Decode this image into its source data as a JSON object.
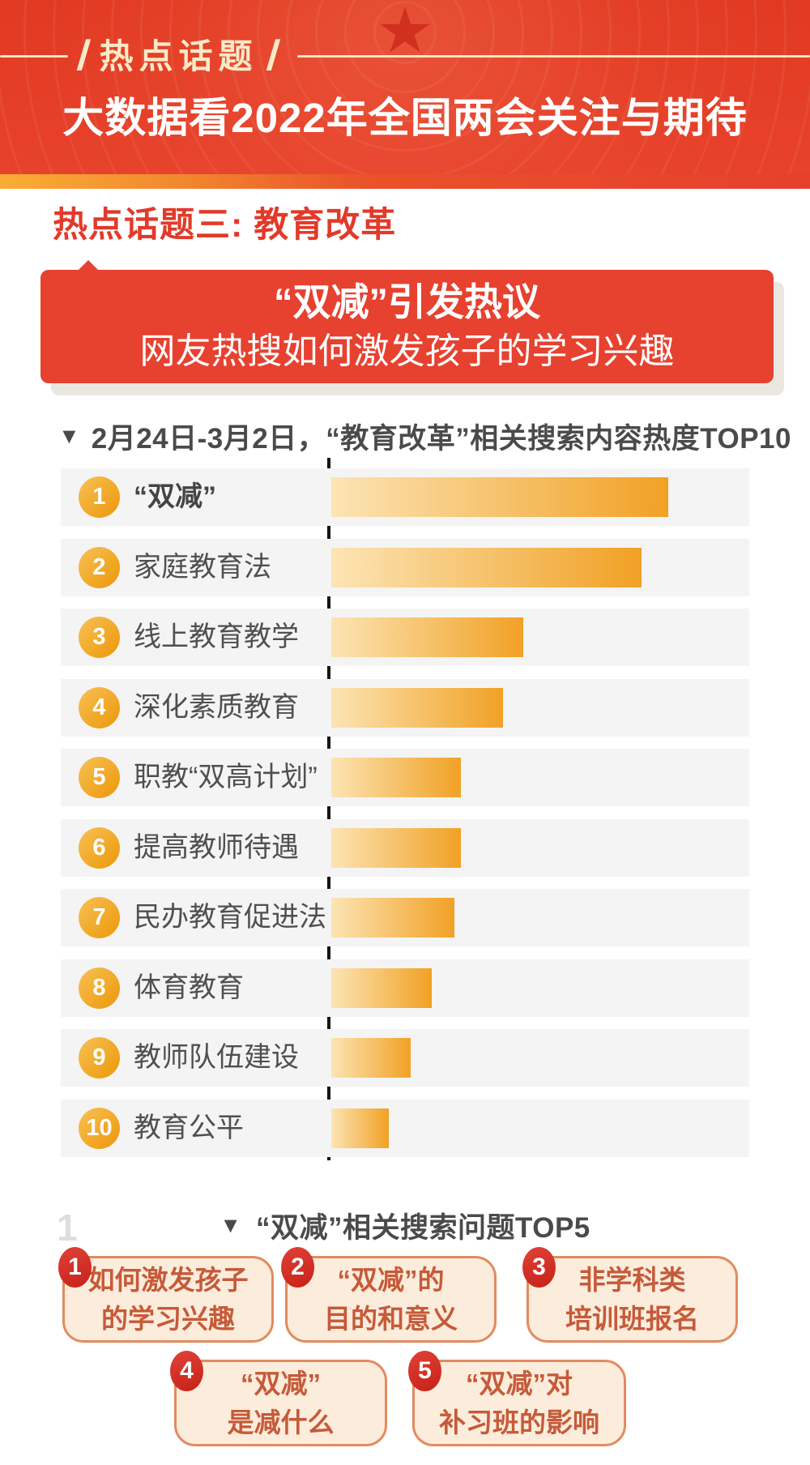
{
  "header": {
    "tagline": "热点话题",
    "title": "大数据看2022年全国两会关注与期待"
  },
  "section": {
    "title": "热点话题三: 教育改革"
  },
  "callout": {
    "headline": "“双减”引发热议",
    "subline": "网友热搜如何激发孩子的学习兴趣"
  },
  "marker": "▼",
  "watermark": "1",
  "chart_data": {
    "type": "bar",
    "orientation": "horizontal",
    "title": "2月24日-3月2日，“教育改革”相关搜索内容热度TOP10",
    "xlabel": "",
    "ylabel": "",
    "xlim": [
      0,
      100
    ],
    "grid": false,
    "note": "bars unlabeled; values are relative search-heat as % of top bar",
    "rows": [
      {
        "rank": 1,
        "label": "“双减”",
        "value": 100
      },
      {
        "rank": 2,
        "label": "家庭教育法",
        "value": 92
      },
      {
        "rank": 3,
        "label": "线上教育教学",
        "value": 57
      },
      {
        "rank": 4,
        "label": "深化素质教育",
        "value": 51
      },
      {
        "rank": 5,
        "label": "职教“双高计划”",
        "value": 38.4
      },
      {
        "rank": 6,
        "label": "提高教师待遇",
        "value": 38.4
      },
      {
        "rank": 7,
        "label": "民办教育促进法",
        "value": 36.6
      },
      {
        "rank": 8,
        "label": "体育教育",
        "value": 29.9
      },
      {
        "rank": 9,
        "label": "教师队伍建设",
        "value": 23.6
      },
      {
        "rank": 10,
        "label": "教育公平",
        "value": 17.1
      }
    ]
  },
  "questions": {
    "title": "“双减”相关搜索问题TOP5",
    "items": [
      {
        "rank": 1,
        "text": "如何激发孩子\n的学习兴趣"
      },
      {
        "rank": 2,
        "text": "“双减”的\n目的和意义"
      },
      {
        "rank": 3,
        "text": "非学科类\n培训班报名"
      },
      {
        "rank": 4,
        "text": "“双减”\n是减什么"
      },
      {
        "rank": 5,
        "text": "“双减”对\n补习班的影响"
      }
    ]
  },
  "colors": {
    "background_red": "#e6402c",
    "stripe_gold": "#f9ad35",
    "section_red": "#e23a2a",
    "bar_gradient_start": "#fce4b4",
    "bar_gradient_end": "#f1a125",
    "rank_circle_orange": "#f0a527",
    "row_background": "#f4f4f5",
    "label_gray": "#4f4f4f",
    "card_background": "#fcecdb",
    "card_border": "#e18b60",
    "card_text": "#c65a39",
    "badge_red": "#d02f28",
    "cream": "#f9e9c7"
  }
}
